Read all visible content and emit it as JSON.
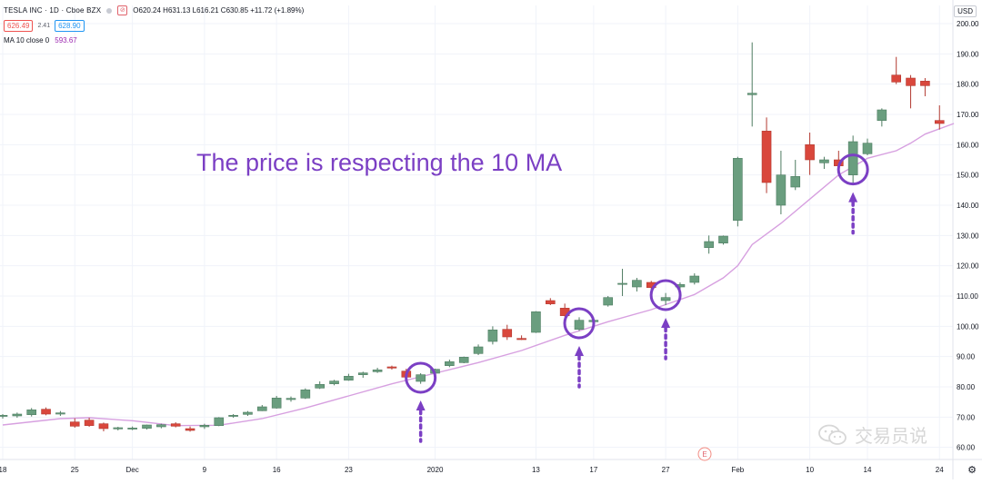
{
  "header": {
    "symbol": "TESLA INC · 1D · Cboe BZX",
    "ohlc": "O620.24 H631.13 L616.21 C630.85 +11.72 (+1.89%)",
    "sell_price": "626.49",
    "spread": "2.41",
    "buy_price": "628.90",
    "ma_label": "MA 10 close 0",
    "ma_value": "593.67",
    "currency": "USD"
  },
  "annotation": "The price is respecting the 10 MA",
  "event_marker": "E",
  "watermark": "交易员说",
  "colors": {
    "up": "#6a9e7f",
    "down": "#d9473c",
    "ma": "#d7a0e0",
    "circle": "#7b3fc4",
    "annotation": "#7b3fc4"
  },
  "chart_data": {
    "type": "candlestick",
    "ylim": [
      56,
      206
    ],
    "y_ticks": [
      60,
      70,
      80,
      90,
      100,
      110,
      120,
      130,
      140,
      150,
      160,
      170,
      180,
      190,
      200
    ],
    "y_tick_labels": [
      "60.00",
      "70.00",
      "80.00",
      "90.00",
      "100.00",
      "110.00",
      "120.00",
      "130.00",
      "140.00",
      "150.00",
      "160.00",
      "170.00",
      "180.00",
      "190.00",
      "200.00"
    ],
    "x_ticks": [
      {
        "index": 0,
        "label": "18"
      },
      {
        "index": 5,
        "label": "25"
      },
      {
        "index": 9,
        "label": "Dec"
      },
      {
        "index": 14,
        "label": "9"
      },
      {
        "index": 19,
        "label": "16"
      },
      {
        "index": 24,
        "label": "23"
      },
      {
        "index": 30,
        "label": "2020"
      },
      {
        "index": 37,
        "label": "13"
      },
      {
        "index": 41,
        "label": "17"
      },
      {
        "index": 46,
        "label": "27"
      },
      {
        "index": 51,
        "label": "Feb"
      },
      {
        "index": 56,
        "label": "10"
      },
      {
        "index": 60,
        "label": "14"
      },
      {
        "index": 65,
        "label": "24"
      }
    ],
    "candles": [
      [
        70.3,
        71.0,
        69.5,
        70.6
      ],
      [
        70.4,
        71.5,
        69.8,
        71.0
      ],
      [
        70.8,
        73.0,
        70.2,
        72.4
      ],
      [
        72.6,
        73.2,
        70.6,
        71.0
      ],
      [
        71.0,
        72.0,
        70.4,
        71.4
      ],
      [
        68.4,
        69.6,
        66.5,
        67.0
      ],
      [
        69.0,
        69.8,
        66.8,
        67.2
      ],
      [
        67.8,
        68.2,
        65.3,
        66.2
      ],
      [
        66.1,
        66.8,
        65.6,
        66.5
      ],
      [
        66.2,
        66.9,
        65.7,
        66.4
      ],
      [
        66.3,
        67.5,
        65.9,
        67.4
      ],
      [
        66.8,
        67.8,
        66.3,
        67.5
      ],
      [
        67.8,
        68.3,
        66.6,
        67.0
      ],
      [
        66.2,
        66.9,
        65.2,
        65.6
      ],
      [
        66.8,
        67.8,
        66.1,
        67.3
      ],
      [
        67.2,
        70.0,
        67.0,
        69.8
      ],
      [
        70.4,
        71.0,
        69.8,
        70.6
      ],
      [
        70.9,
        72.0,
        70.4,
        71.6
      ],
      [
        72.1,
        74.0,
        72.0,
        73.4
      ],
      [
        73.0,
        77.0,
        72.8,
        76.3
      ],
      [
        75.8,
        76.8,
        75.1,
        76.2
      ],
      [
        76.3,
        79.5,
        76.0,
        79.0
      ],
      [
        79.6,
        81.8,
        79.3,
        80.8
      ],
      [
        81.0,
        82.3,
        80.5,
        81.9
      ],
      [
        82.2,
        84.3,
        82.0,
        83.5
      ],
      [
        84.0,
        85.0,
        83.0,
        84.6
      ],
      [
        85.0,
        86.3,
        84.6,
        85.6
      ],
      [
        86.6,
        87.0,
        85.7,
        86.2
      ],
      [
        85.2,
        86.0,
        82.6,
        83.2
      ],
      [
        81.8,
        84.5,
        81.0,
        84.0
      ],
      [
        84.5,
        86.0,
        84.1,
        85.8
      ],
      [
        87.0,
        89.0,
        86.5,
        88.3
      ],
      [
        88.0,
        90.0,
        87.8,
        89.8
      ],
      [
        91.0,
        94.0,
        90.5,
        93.2
      ],
      [
        95.0,
        100.0,
        94.0,
        98.8
      ],
      [
        99.0,
        100.5,
        95.5,
        96.5
      ],
      [
        96.0,
        97.0,
        95.5,
        95.6
      ],
      [
        98.0,
        105.0,
        97.8,
        104.8
      ],
      [
        108.5,
        109.3,
        107.0,
        107.4
      ],
      [
        106.0,
        107.5,
        103.2,
        103.5
      ],
      [
        99.0,
        103.0,
        98.5,
        102.0
      ],
      [
        101.5,
        102.5,
        101.0,
        102.0
      ],
      [
        107.0,
        110.0,
        106.5,
        109.5
      ],
      [
        114.0,
        119.0,
        110.0,
        114.2
      ],
      [
        113.0,
        116.0,
        111.5,
        115.2
      ],
      [
        114.5,
        115.0,
        112.0,
        112.8
      ],
      [
        108.5,
        111.0,
        107.0,
        109.5
      ],
      [
        113.0,
        114.5,
        112.0,
        113.8
      ],
      [
        114.5,
        117.5,
        113.8,
        116.6
      ],
      [
        126.0,
        130.0,
        124.0,
        128.0
      ],
      [
        127.5,
        130.0,
        127.0,
        129.8
      ],
      [
        135.0,
        156.0,
        133.0,
        155.5
      ],
      [
        176.5,
        193.8,
        166.0,
        177.0
      ],
      [
        164.5,
        169.0,
        144.0,
        147.5
      ],
      [
        140.0,
        158.0,
        137.0,
        150.0
      ],
      [
        146.0,
        155.0,
        145.0,
        149.5
      ],
      [
        160.0,
        164.0,
        150.0,
        155.0
      ],
      [
        154.0,
        156.0,
        152.0,
        155.0
      ],
      [
        155.0,
        158.0,
        153.0,
        153.0
      ],
      [
        150.0,
        163.0,
        147.0,
        161.0
      ],
      [
        157.0,
        162.0,
        156.5,
        160.5
      ],
      [
        168.0,
        172.0,
        166.0,
        171.5
      ],
      [
        183.0,
        189.0,
        180.0,
        180.7
      ],
      [
        182.0,
        183.0,
        172.0,
        179.5
      ],
      [
        181.0,
        182.0,
        176.0,
        179.5
      ],
      [
        168.0,
        173.0,
        165.0,
        167.0
      ]
    ],
    "ma10": [
      [
        0,
        67.4
      ],
      [
        4,
        69.5
      ],
      [
        6,
        69.8
      ],
      [
        9,
        68.8
      ],
      [
        12,
        67.2
      ],
      [
        15,
        67.3
      ],
      [
        18,
        69.5
      ],
      [
        21,
        73.0
      ],
      [
        24,
        77.0
      ],
      [
        27,
        81.0
      ],
      [
        30,
        84.5
      ],
      [
        33,
        88.0
      ],
      [
        36,
        92.0
      ],
      [
        39,
        97.0
      ],
      [
        42,
        101.5
      ],
      [
        45,
        105.5
      ],
      [
        48,
        110.5
      ],
      [
        50,
        116.0
      ],
      [
        51,
        120.0
      ],
      [
        52,
        127.0
      ],
      [
        54,
        134.0
      ],
      [
        56,
        142.0
      ],
      [
        58,
        150.0
      ],
      [
        60,
        155.5
      ],
      [
        62,
        158.0
      ],
      [
        63,
        160.5
      ],
      [
        64,
        163.5
      ],
      [
        66,
        167.0
      ]
    ],
    "highlight_circles": [
      {
        "index": 29,
        "value": 83.0
      },
      {
        "index": 40,
        "value": 101.0
      },
      {
        "index": 46,
        "value": 110.3
      },
      {
        "index": 59,
        "value": 151.8
      }
    ]
  }
}
